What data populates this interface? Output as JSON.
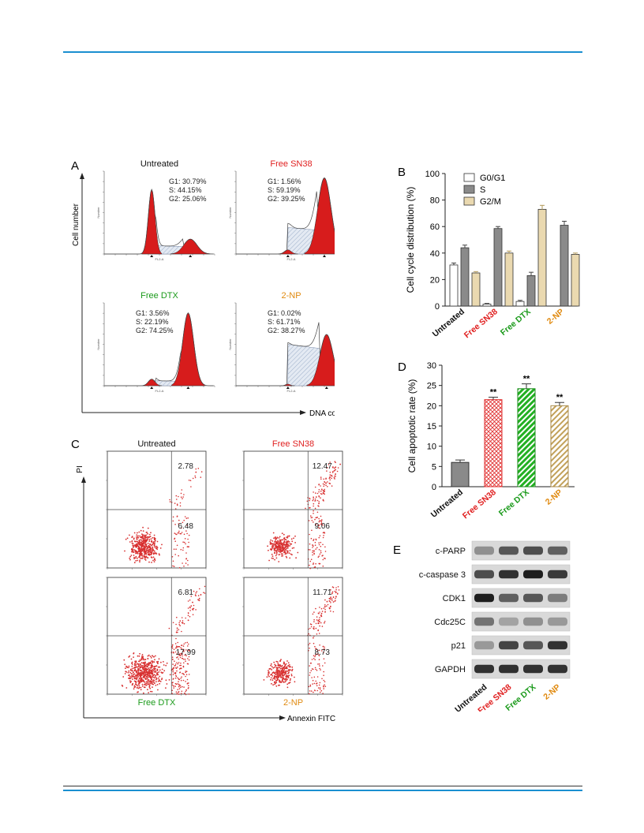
{
  "figure": {
    "panel_letters": {
      "a": "A",
      "b": "B",
      "c": "C",
      "d": "D",
      "e": "E"
    },
    "colors": {
      "untreated": "#111111",
      "free_sn38": "#e02020",
      "free_dtx": "#1a9a1a",
      "two_np": "#e08a10",
      "rule_blue": "#1a8fd0",
      "hist_red": "#d71c1c",
      "dot_red": "#d83030"
    }
  },
  "panel_a": {
    "y_axis_label": "Cell number",
    "x_axis_label": "DNA content",
    "x_tick_title": "FL2-A",
    "y_tick_title": "Number",
    "histograms": [
      {
        "title": "Untreated",
        "color_key": "untreated",
        "stats": [
          "G1: 30.79%",
          "S:  44.15%",
          "G2: 25.06%"
        ]
      },
      {
        "title": "Free SN38",
        "color_key": "free_sn38",
        "stats": [
          "G1: 1.56%",
          "S:  59.19%",
          "G2: 39.25%"
        ]
      },
      {
        "title": "Free DTX",
        "color_key": "free_dtx",
        "stats": [
          "G1: 3.56%",
          "S:  22.19%",
          "G2: 74.25%"
        ]
      },
      {
        "title": "2-NP",
        "color_key": "two_np",
        "stats": [
          "G1: 0.02%",
          "S:  61.71%",
          "G2: 38.27%"
        ]
      }
    ]
  },
  "panel_c": {
    "y_axis_label": "PI",
    "x_axis_label": "Annexin FITC",
    "plots": [
      {
        "title": "Untreated",
        "color_key": "untreated",
        "upper_right": "2.78",
        "lower_right": "6.48"
      },
      {
        "title": "Free SN38",
        "color_key": "free_sn38",
        "upper_right": "12.47",
        "lower_right": "9.06"
      },
      {
        "title": "Free DTX",
        "color_key": "free_dtx",
        "upper_right": "6.81",
        "lower_right": "17.99"
      },
      {
        "title": "2-NP",
        "color_key": "two_np",
        "upper_right": "11.71",
        "lower_right": "8.73"
      }
    ]
  },
  "panel_e": {
    "bands": [
      "c-PARP",
      "c-caspase 3",
      "CDK1",
      "Cdc25C",
      "p21",
      "GAPDH"
    ],
    "lanes": [
      "Untreated",
      "Free SN38",
      "Free DTX",
      "2-NP"
    ],
    "intensity": [
      [
        0.35,
        0.65,
        0.7,
        0.6
      ],
      [
        0.7,
        0.85,
        0.95,
        0.8
      ],
      [
        0.95,
        0.6,
        0.65,
        0.45
      ],
      [
        0.5,
        0.25,
        0.35,
        0.3
      ],
      [
        0.3,
        0.75,
        0.65,
        0.85
      ],
      [
        0.85,
        0.85,
        0.85,
        0.85
      ]
    ]
  },
  "chart_data": [
    {
      "panel": "B",
      "type": "bar",
      "title": "",
      "xlabel": "",
      "ylabel": "Cell cycle distribution (%)",
      "ylim": [
        0,
        100
      ],
      "yticks": [
        0,
        20,
        40,
        60,
        80,
        100
      ],
      "categories": [
        "Untreated",
        "Free SN38",
        "Free DTX",
        "2-NP"
      ],
      "category_color_keys": [
        "untreated",
        "free_sn38",
        "free_dtx",
        "two_np"
      ],
      "legend_position": "top-right",
      "series": [
        {
          "name": "G0/G1",
          "values": [
            31,
            1.5,
            3.5,
            0
          ],
          "errors": [
            1.5,
            0.5,
            0.8,
            0
          ],
          "color": "#ffffff"
        },
        {
          "name": "S",
          "values": [
            44,
            58.5,
            23,
            61
          ],
          "errors": [
            2,
            1.5,
            2.5,
            3
          ],
          "color": "#8a8a8a"
        },
        {
          "name": "G2/M",
          "values": [
            25,
            40,
            73,
            39
          ],
          "errors": [
            1,
            1.5,
            3,
            1
          ],
          "color": "#ead9b0"
        }
      ]
    },
    {
      "panel": "D",
      "type": "bar",
      "title": "",
      "xlabel": "",
      "ylabel": "Cell apoptotic rate (%)",
      "ylim": [
        0,
        30
      ],
      "yticks": [
        0,
        5,
        10,
        15,
        20,
        25,
        30
      ],
      "categories": [
        "Untreated",
        "Free SN38",
        "Free DTX",
        "2-NP"
      ],
      "category_color_keys": [
        "untreated",
        "free_sn38",
        "free_dtx",
        "two_np"
      ],
      "values": [
        6,
        21.5,
        24.2,
        20
      ],
      "errors": [
        0.6,
        0.6,
        1.2,
        0.8
      ],
      "significance": [
        "",
        "**",
        "**",
        "**"
      ],
      "bar_styles": [
        "gray-solid",
        "red-crosshatch",
        "green-diagonal",
        "tan-diagonal"
      ]
    }
  ]
}
